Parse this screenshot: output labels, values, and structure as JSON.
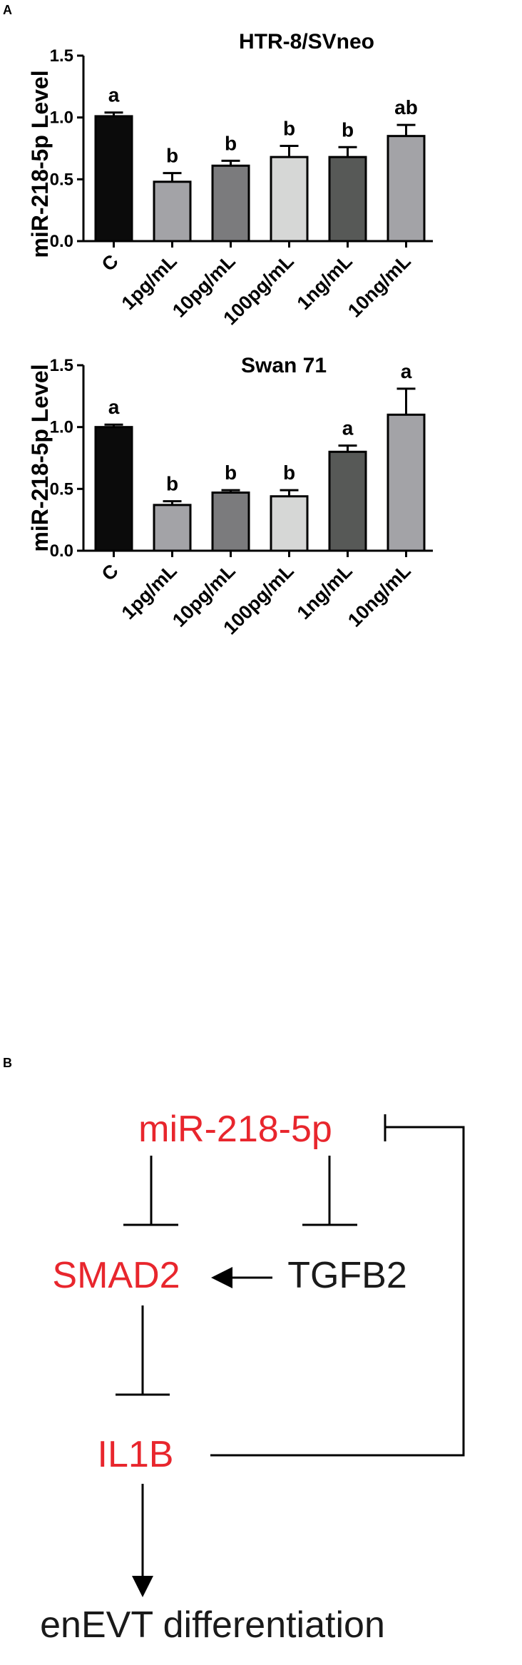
{
  "panels": {
    "a": "A",
    "b": "B"
  },
  "chart_data": [
    {
      "type": "bar",
      "title": "HTR-8/SVneo",
      "ylabel": "miR-218-5p Level",
      "xlabel": "",
      "categories": [
        "C",
        "1pg/mL",
        "10pg/mL",
        "100pg/mL",
        "1ng/mL",
        "10ng/mL"
      ],
      "values": [
        1.01,
        0.48,
        0.61,
        0.68,
        0.68,
        0.85
      ],
      "errors": [
        0.03,
        0.07,
        0.04,
        0.09,
        0.08,
        0.09
      ],
      "significance": [
        "a",
        "b",
        "b",
        "b",
        "b",
        "ab"
      ],
      "colors": [
        "#0b0b0b",
        "#a3a3a7",
        "#7b7b7d",
        "#d6d7d6",
        "#575957",
        "#a3a3a7"
      ],
      "ylim": [
        0,
        1.5
      ],
      "yticks": [
        "0.0",
        "0.5",
        "1.0",
        "1.5"
      ],
      "grid": false
    },
    {
      "type": "bar",
      "title": "Swan 71",
      "ylabel": "miR-218-5p Level",
      "xlabel": "",
      "categories": [
        "C",
        "1pg/mL",
        "10pg/mL",
        "100pg/mL",
        "1ng/mL",
        "10ng/mL"
      ],
      "values": [
        1.0,
        0.37,
        0.47,
        0.44,
        0.8,
        1.1
      ],
      "errors": [
        0.02,
        0.03,
        0.02,
        0.05,
        0.05,
        0.21
      ],
      "significance": [
        "a",
        "b",
        "b",
        "b",
        "a",
        "a"
      ],
      "colors": [
        "#0b0b0b",
        "#a3a3a7",
        "#7b7b7d",
        "#d6d7d6",
        "#575957",
        "#a3a3a7"
      ],
      "ylim": [
        0,
        1.5
      ],
      "yticks": [
        "0.0",
        "0.5",
        "1.0",
        "1.5"
      ],
      "grid": false
    }
  ],
  "diagram": {
    "mirna": "miR-218-5p",
    "smad2": "SMAD2",
    "tgfb2": "TGFB2",
    "il1b": "IL1B",
    "outcome": "enEVT differentiation",
    "highlight_color": "#e8262d",
    "text_color": "#1a1a1a"
  }
}
